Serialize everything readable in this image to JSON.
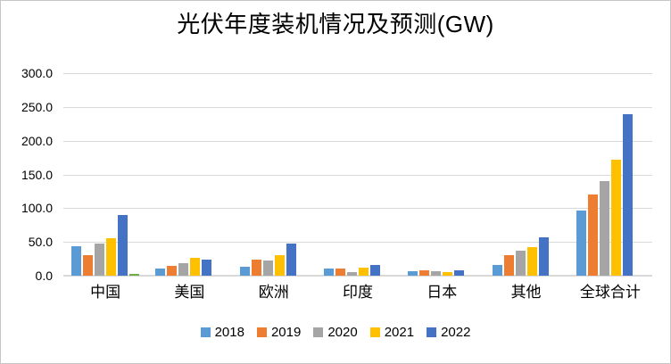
{
  "window": {
    "background": "#ffffff",
    "border_color": "#c6c6c6"
  },
  "chart_data": {
    "type": "bar",
    "title": "光伏年度装机情况及预测(GW)",
    "categories": [
      "中国",
      "美国",
      "欧洲",
      "印度",
      "日本",
      "其他",
      "全球合计"
    ],
    "series": [
      {
        "name": "2018",
        "color": "#5B9BD5",
        "values": [
          44,
          11,
          13,
          10,
          6.5,
          16,
          97
        ]
      },
      {
        "name": "2019",
        "color": "#ED7D31",
        "values": [
          30,
          14,
          24,
          10.5,
          7.5,
          31,
          120
        ]
      },
      {
        "name": "2020",
        "color": "#A5A5A5",
        "values": [
          48,
          19,
          22,
          6,
          7,
          37,
          140
        ]
      },
      {
        "name": "2021",
        "color": "#FFC000",
        "values": [
          55,
          27,
          30,
          12,
          5.5,
          42,
          172
        ]
      },
      {
        "name": "2022",
        "color": "#4472C4",
        "values": [
          90,
          24,
          47,
          16,
          7.5,
          57,
          239
        ]
      },
      {
        "name": "",
        "color": "#70AD47",
        "values": [
          3,
          0,
          0,
          0,
          0,
          0,
          0
        ],
        "in_legend": false
      }
    ],
    "legend": {
      "position": "bottom",
      "entries": [
        "2018",
        "2019",
        "2020",
        "2021",
        "2022"
      ]
    },
    "y_axis": {
      "min": 0,
      "max": 300,
      "step": 50,
      "tick_labels": [
        "0.0",
        "50.0",
        "100.0",
        "150.0",
        "200.0",
        "250.0",
        "300.0"
      ],
      "gridlines": true,
      "gridline_color": "#d9d9d9"
    },
    "x_axis": {
      "label": "",
      "tick_labels": [
        "中国",
        "美国",
        "欧洲",
        "印度",
        "日本",
        "其他",
        "全球合计"
      ]
    }
  }
}
